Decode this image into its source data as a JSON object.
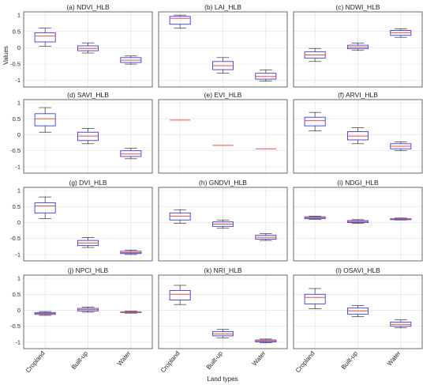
{
  "figure": {
    "ylabel": "Values",
    "xlabel": "Land types"
  },
  "chart_data": {
    "type": "box",
    "categories": [
      "Cropland",
      "Built-up",
      "Water"
    ],
    "ylim": [
      -1.2,
      1.1
    ],
    "yticks": [
      -1,
      -0.5,
      0,
      0.5,
      1
    ],
    "grid": true,
    "colors": {
      "box": "#3b3bd6",
      "median": "#e05050",
      "whisker": "#333333",
      "grid": "#e4e4e4",
      "frame": "#444444"
    },
    "panels": [
      {
        "title": "(a) NDVI_HLB",
        "boxes": [
          {
            "min": 0.05,
            "q1": 0.18,
            "median": 0.36,
            "q3": 0.46,
            "max": 0.6
          },
          {
            "min": -0.16,
            "q1": -0.09,
            "median": -0.02,
            "q3": 0.06,
            "max": 0.15
          },
          {
            "min": -0.5,
            "q1": -0.45,
            "median": -0.38,
            "q3": -0.3,
            "max": -0.25
          }
        ]
      },
      {
        "title": "(b) LAI_HLB",
        "boxes": [
          {
            "min": 0.6,
            "q1": 0.72,
            "median": 0.9,
            "q3": 0.96,
            "max": 1.0
          },
          {
            "min": -0.78,
            "q1": -0.67,
            "median": -0.55,
            "q3": -0.42,
            "max": -0.3
          },
          {
            "min": -1.02,
            "q1": -0.96,
            "median": -0.88,
            "q3": -0.78,
            "max": -0.68
          }
        ]
      },
      {
        "title": "(c) NDWI_HLB",
        "boxes": [
          {
            "min": -0.42,
            "q1": -0.32,
            "median": -0.22,
            "q3": -0.12,
            "max": -0.02
          },
          {
            "min": -0.08,
            "q1": -0.03,
            "median": 0.02,
            "q3": 0.08,
            "max": 0.14
          },
          {
            "min": 0.32,
            "q1": 0.38,
            "median": 0.46,
            "q3": 0.53,
            "max": 0.58
          }
        ]
      },
      {
        "title": "(d) SAVI_HLB",
        "boxes": [
          {
            "min": 0.08,
            "q1": 0.28,
            "median": 0.5,
            "q3": 0.66,
            "max": 0.85
          },
          {
            "min": -0.28,
            "q1": -0.18,
            "median": -0.04,
            "q3": 0.08,
            "max": 0.2
          },
          {
            "min": -0.75,
            "q1": -0.68,
            "median": -0.6,
            "q3": -0.5,
            "max": -0.42
          }
        ]
      },
      {
        "title": "(e) EVI_HLB",
        "boxes": [
          {
            "min": 0.46,
            "q1": 0.46,
            "median": 0.46,
            "q3": 0.46,
            "max": 0.46
          },
          {
            "min": -0.33,
            "q1": -0.33,
            "median": -0.33,
            "q3": -0.33,
            "max": -0.33
          },
          {
            "min": -0.44,
            "q1": -0.44,
            "median": -0.44,
            "q3": -0.44,
            "max": -0.44
          }
        ]
      },
      {
        "title": "(f) ARVI_HLB",
        "boxes": [
          {
            "min": 0.12,
            "q1": 0.28,
            "median": 0.44,
            "q3": 0.55,
            "max": 0.7
          },
          {
            "min": -0.28,
            "q1": -0.16,
            "median": -0.04,
            "q3": 0.1,
            "max": 0.22
          },
          {
            "min": -0.5,
            "q1": -0.44,
            "median": -0.36,
            "q3": -0.28,
            "max": -0.22
          }
        ]
      },
      {
        "title": "(g) DVI_HLB",
        "boxes": [
          {
            "min": 0.12,
            "q1": 0.3,
            "median": 0.52,
            "q3": 0.62,
            "max": 0.8
          },
          {
            "min": -0.78,
            "q1": -0.72,
            "median": -0.64,
            "q3": -0.56,
            "max": -0.47
          },
          {
            "min": -1.0,
            "q1": -0.97,
            "median": -0.94,
            "q3": -0.9,
            "max": -0.86
          }
        ]
      },
      {
        "title": "(h) GNDVI_HLB",
        "boxes": [
          {
            "min": -0.02,
            "q1": 0.08,
            "median": 0.2,
            "q3": 0.3,
            "max": 0.4
          },
          {
            "min": -0.18,
            "q1": -0.12,
            "median": -0.05,
            "q3": 0.02,
            "max": 0.08
          },
          {
            "min": -0.56,
            "q1": -0.52,
            "median": -0.46,
            "q3": -0.4,
            "max": -0.35
          }
        ]
      },
      {
        "title": "(i) NDGI_HLB",
        "boxes": [
          {
            "min": 0.1,
            "q1": 0.12,
            "median": 0.15,
            "q3": 0.18,
            "max": 0.2
          },
          {
            "min": -0.03,
            "q1": 0.0,
            "median": 0.03,
            "q3": 0.06,
            "max": 0.09
          },
          {
            "min": 0.08,
            "q1": 0.09,
            "median": 0.11,
            "q3": 0.12,
            "max": 0.14
          }
        ]
      },
      {
        "title": "(j) NPCI_HLB",
        "boxes": [
          {
            "min": -0.16,
            "q1": -0.13,
            "median": -0.1,
            "q3": -0.07,
            "max": -0.04
          },
          {
            "min": -0.06,
            "q1": -0.02,
            "median": 0.02,
            "q3": 0.06,
            "max": 0.1
          },
          {
            "min": -0.09,
            "q1": -0.07,
            "median": -0.06,
            "q3": -0.05,
            "max": -0.03
          }
        ]
      },
      {
        "title": "(k) NRI_HLB",
        "boxes": [
          {
            "min": 0.18,
            "q1": 0.32,
            "median": 0.5,
            "q3": 0.62,
            "max": 0.78
          },
          {
            "min": -0.86,
            "q1": -0.8,
            "median": -0.74,
            "q3": -0.67,
            "max": -0.6
          },
          {
            "min": -1.02,
            "q1": -0.99,
            "median": -0.96,
            "q3": -0.93,
            "max": -0.9
          }
        ]
      },
      {
        "title": "(l) OSAVI_HLB",
        "boxes": [
          {
            "min": 0.05,
            "q1": 0.2,
            "median": 0.4,
            "q3": 0.5,
            "max": 0.68
          },
          {
            "min": -0.2,
            "q1": -0.12,
            "median": -0.02,
            "q3": 0.07,
            "max": 0.15
          },
          {
            "min": -0.55,
            "q1": -0.5,
            "median": -0.44,
            "q3": -0.37,
            "max": -0.3
          }
        ]
      }
    ]
  }
}
